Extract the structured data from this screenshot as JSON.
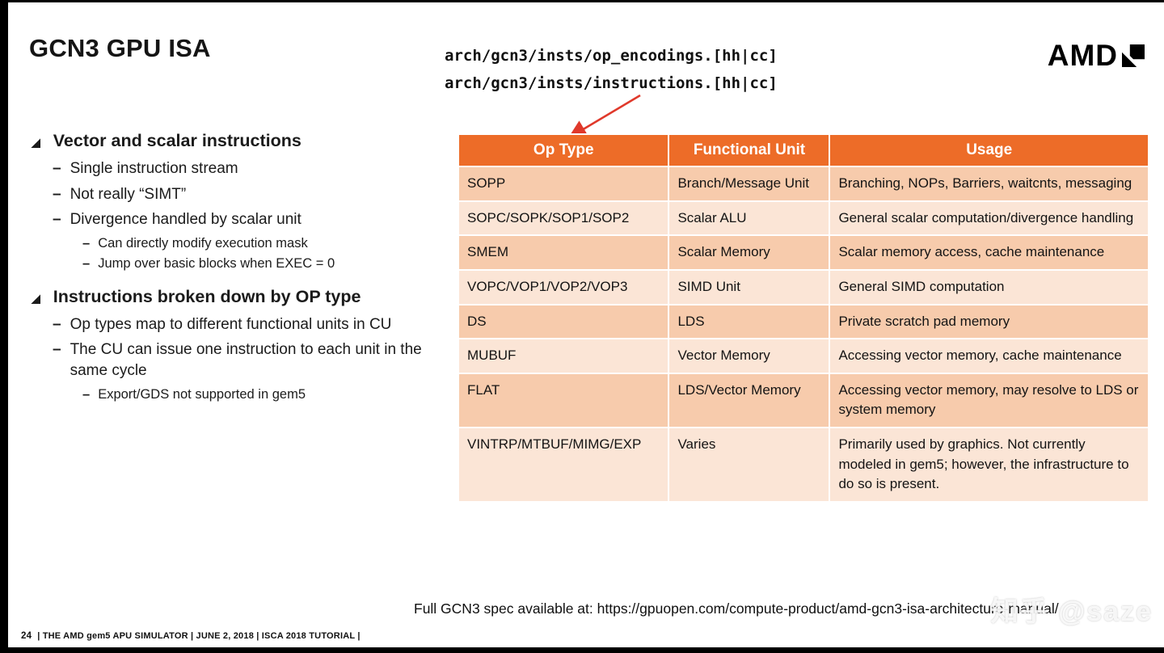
{
  "header": {
    "title": "GCN3 GPU ISA",
    "code_lines": [
      "arch/gcn3/insts/op_encodings.[hh|cc]",
      "arch/gcn3/insts/instructions.[hh|cc]"
    ],
    "logo_text": "AMD"
  },
  "bullets": {
    "l1_marker": "◢",
    "sub_marker": "–",
    "items": [
      {
        "level": 1,
        "text": "Vector and scalar instructions"
      },
      {
        "level": 2,
        "text": "Single instruction stream"
      },
      {
        "level": 2,
        "text": "Not really “SIMT”"
      },
      {
        "level": 2,
        "text": "Divergence handled by scalar unit"
      },
      {
        "level": 3,
        "text": "Can directly modify execution mask"
      },
      {
        "level": 3,
        "text": "Jump over basic blocks when EXEC = 0"
      },
      {
        "level": 1,
        "text": "Instructions broken down by OP type"
      },
      {
        "level": 2,
        "text": "Op types map to different functional units in CU"
      },
      {
        "level": 2,
        "text": "The CU can issue one instruction to each unit in the same cycle"
      },
      {
        "level": 3,
        "text": "Export/GDS not supported in gem5"
      }
    ]
  },
  "table": {
    "headers": [
      "Op Type",
      "Functional Unit",
      "Usage"
    ],
    "rows": [
      [
        "SOPP",
        "Branch/Message Unit",
        "Branching, NOPs, Barriers, waitcnts, messaging"
      ],
      [
        "SOPC/SOPK/SOP1/SOP2",
        "Scalar ALU",
        "General scalar computation/divergence handling"
      ],
      [
        "SMEM",
        "Scalar Memory",
        "Scalar memory access, cache maintenance"
      ],
      [
        "VOPC/VOP1/VOP2/VOP3",
        "SIMD Unit",
        "General SIMD computation"
      ],
      [
        "DS",
        "LDS",
        "Private scratch pad memory"
      ],
      [
        "MUBUF",
        "Vector Memory",
        "Accessing vector memory, cache maintenance"
      ],
      [
        "FLAT",
        "LDS/Vector Memory",
        "Accessing vector memory, may resolve to LDS or system memory"
      ],
      [
        "VINTRP/MTBUF/MIMG/EXP",
        "Varies",
        "Primarily used by graphics. Not currently modeled in gem5; however, the infrastructure to do so is present."
      ]
    ]
  },
  "footer": {
    "spec_text": "Full GCN3 spec available at: https://gpuopen.com/compute-product/amd-gcn3-isa-architecture-manual/",
    "page_number": "24",
    "meta": "|   THE AMD gem5 APU SIMULATOR    |   JUNE 2, 2018    |   ISCA 2018 TUTORIAL    |"
  },
  "watermark": {
    "text": "知乎 @saze"
  },
  "colors": {
    "table_header_orange": "#ED6C28",
    "row_band_dark": "#F7CBAC",
    "row_band_light": "#FBE5D6",
    "arrow_red": "#E0392B",
    "text_black": "#1a1a1a"
  }
}
